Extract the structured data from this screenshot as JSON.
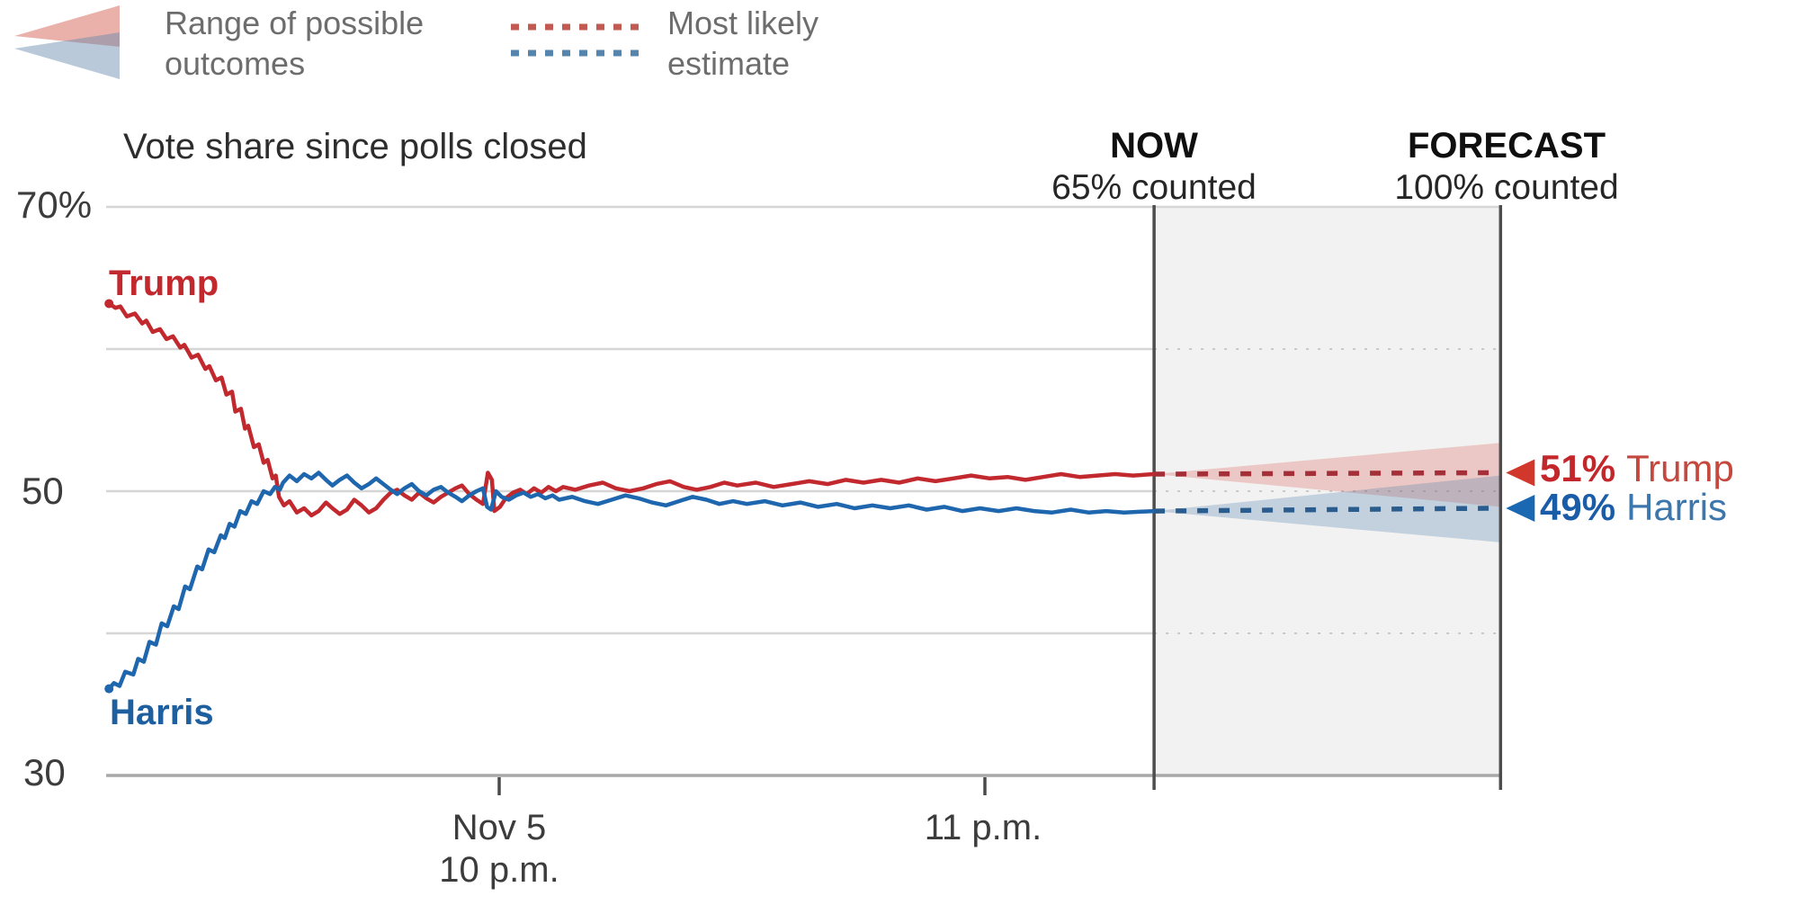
{
  "legend": {
    "range_label": "Range of possible\noutcomes",
    "estimate_label": "Most likely\nestimate"
  },
  "chart": {
    "title": "Vote share since polls closed"
  },
  "columns": {
    "now": {
      "title": "NOW",
      "subtitle": "65% counted"
    },
    "forecast": {
      "title": "FORECAST",
      "subtitle": "100% counted"
    }
  },
  "series_labels": {
    "trump": "Trump",
    "harris": "Harris"
  },
  "results": {
    "trump": {
      "pct": "51%",
      "name": "Trump"
    },
    "harris": {
      "pct": "49%",
      "name": "Harris"
    }
  },
  "colors": {
    "trump_line": "#c2292e",
    "harris_line": "#1e66ae",
    "trump_label": "#c2292e",
    "harris_label": "#1e5fa0",
    "trump_dash": "#a52f38",
    "harris_dash": "#2b5c8e",
    "trump_arrow": "#d1372a",
    "harris_arrow": "#1a68b2",
    "trump_fan": "rgba(217,83,71,0.26)",
    "harris_fan": "rgba(86,128,173,0.30)",
    "legend_fan_red": "rgba(214,100,88,0.50)",
    "legend_fan_blue": "rgba(100,135,172,0.45)",
    "legend_dash_red": "#c05a52",
    "legend_dash_blue": "#5585ad",
    "end_pct_trump": "#c3272c",
    "end_name_trump": "#c5483e",
    "end_pct_harris": "#1a5ca8",
    "end_name_harris": "#3b76ac",
    "grid": "#d6d6d6",
    "grid_dotted": "#c9c9c9",
    "baseline": "#a8a8a8",
    "border": "#4d4d4d",
    "axis_tick": "#4a4a4a",
    "region_bg": "#f2f2f2"
  },
  "chart_data": {
    "type": "line",
    "title": "Vote share since polls closed",
    "x_unit": "minutes relative to Nov 5, 10 p.m.",
    "y_unit": "percent of counted vote",
    "ylim": [
      30,
      70
    ],
    "y_ticks": [
      {
        "v": 70,
        "label": "70%"
      },
      {
        "v": 50,
        "label": "50"
      },
      {
        "v": 30,
        "label": "30"
      }
    ],
    "y_grid_unlabeled": [
      60,
      40
    ],
    "x_ticks": [
      {
        "t": 0,
        "label": "Nov 5\n10 p.m."
      },
      {
        "t": 60,
        "label": "11 p.m."
      }
    ],
    "now": {
      "t": 80.9,
      "counted": "65%"
    },
    "forecast_end": {
      "t": 123.7,
      "counted": "100%"
    },
    "series": [
      {
        "name": "Trump",
        "key": "trump",
        "final": "51%",
        "estimate": {
          "start": 51.2,
          "end": 51.3
        },
        "range_at_end": [
          48.9,
          53.4
        ],
        "points": [
          [
            -48.2,
            63.2
          ],
          [
            -47.4,
            62.9
          ],
          [
            -46.8,
            63.0
          ],
          [
            -46.0,
            62.3
          ],
          [
            -45.0,
            62.5
          ],
          [
            -44.1,
            61.8
          ],
          [
            -43.6,
            62.0
          ],
          [
            -42.8,
            61.2
          ],
          [
            -41.9,
            61.4
          ],
          [
            -41.1,
            60.7
          ],
          [
            -40.3,
            60.9
          ],
          [
            -39.4,
            60.1
          ],
          [
            -38.9,
            60.3
          ],
          [
            -38.0,
            59.4
          ],
          [
            -37.2,
            59.6
          ],
          [
            -36.3,
            58.6
          ],
          [
            -35.8,
            58.8
          ],
          [
            -35.0,
            57.8
          ],
          [
            -34.3,
            58.0
          ],
          [
            -33.7,
            56.8
          ],
          [
            -33.0,
            57.0
          ],
          [
            -32.6,
            55.6
          ],
          [
            -31.9,
            55.8
          ],
          [
            -31.4,
            54.4
          ],
          [
            -31.0,
            54.6
          ],
          [
            -30.3,
            53.1
          ],
          [
            -29.7,
            53.3
          ],
          [
            -29.1,
            52.0
          ],
          [
            -28.6,
            52.2
          ],
          [
            -28.0,
            50.9
          ],
          [
            -27.6,
            51.1
          ],
          [
            -27.2,
            49.6
          ],
          [
            -26.6,
            49.0
          ],
          [
            -25.9,
            49.3
          ],
          [
            -25.0,
            48.5
          ],
          [
            -24.1,
            48.8
          ],
          [
            -23.2,
            48.3
          ],
          [
            -22.3,
            48.6
          ],
          [
            -21.4,
            49.2
          ],
          [
            -20.6,
            48.8
          ],
          [
            -19.7,
            48.4
          ],
          [
            -18.8,
            48.7
          ],
          [
            -17.9,
            49.4
          ],
          [
            -17.0,
            49.0
          ],
          [
            -16.1,
            48.5
          ],
          [
            -15.2,
            48.8
          ],
          [
            -14.3,
            49.4
          ],
          [
            -13.4,
            49.9
          ],
          [
            -12.6,
            50.1
          ],
          [
            -11.7,
            49.7
          ],
          [
            -10.8,
            49.4
          ],
          [
            -9.9,
            49.9
          ],
          [
            -9.0,
            49.5
          ],
          [
            -8.1,
            49.2
          ],
          [
            -7.2,
            49.6
          ],
          [
            -6.3,
            49.9
          ],
          [
            -5.4,
            50.2
          ],
          [
            -4.6,
            50.4
          ],
          [
            -3.7,
            49.8
          ],
          [
            -2.8,
            49.4
          ],
          [
            -2.0,
            49.1
          ],
          [
            -1.4,
            51.3
          ],
          [
            -0.9,
            50.8
          ],
          [
            -0.6,
            48.6
          ],
          [
            0.1,
            48.9
          ],
          [
            0.8,
            49.5
          ],
          [
            1.7,
            49.9
          ],
          [
            2.6,
            50.1
          ],
          [
            3.4,
            49.8
          ],
          [
            4.3,
            50.2
          ],
          [
            5.2,
            49.9
          ],
          [
            6.1,
            50.3
          ],
          [
            7.0,
            50.0
          ],
          [
            7.9,
            50.3
          ],
          [
            9.4,
            50.1
          ],
          [
            11.1,
            50.4
          ],
          [
            12.8,
            50.6
          ],
          [
            14.4,
            50.2
          ],
          [
            16.1,
            50.0
          ],
          [
            17.8,
            50.2
          ],
          [
            19.4,
            50.5
          ],
          [
            21.1,
            50.7
          ],
          [
            22.8,
            50.3
          ],
          [
            24.4,
            50.1
          ],
          [
            26.1,
            50.3
          ],
          [
            27.8,
            50.6
          ],
          [
            29.4,
            50.4
          ],
          [
            31.7,
            50.6
          ],
          [
            33.9,
            50.3
          ],
          [
            36.1,
            50.5
          ],
          [
            38.3,
            50.7
          ],
          [
            40.6,
            50.5
          ],
          [
            42.8,
            50.8
          ],
          [
            45.0,
            50.6
          ],
          [
            47.2,
            50.8
          ],
          [
            49.4,
            50.6
          ],
          [
            51.7,
            50.9
          ],
          [
            53.9,
            50.7
          ],
          [
            56.1,
            50.9
          ],
          [
            58.3,
            51.1
          ],
          [
            60.6,
            50.9
          ],
          [
            62.8,
            51.0
          ],
          [
            65.0,
            50.8
          ],
          [
            67.2,
            51.0
          ],
          [
            69.4,
            51.2
          ],
          [
            71.7,
            51.0
          ],
          [
            73.9,
            51.1
          ],
          [
            76.1,
            51.2
          ],
          [
            78.3,
            51.1
          ],
          [
            80.9,
            51.2
          ]
        ]
      },
      {
        "name": "Harris",
        "key": "harris",
        "final": "49%",
        "estimate": {
          "start": 48.6,
          "end": 48.8
        },
        "range_at_end": [
          46.4,
          51.1
        ],
        "points": [
          [
            -48.2,
            36.1
          ],
          [
            -47.6,
            36.5
          ],
          [
            -46.9,
            36.3
          ],
          [
            -46.2,
            37.3
          ],
          [
            -45.2,
            37.1
          ],
          [
            -44.6,
            38.2
          ],
          [
            -43.9,
            38.0
          ],
          [
            -43.2,
            39.4
          ],
          [
            -42.4,
            39.2
          ],
          [
            -41.7,
            40.7
          ],
          [
            -41.0,
            40.5
          ],
          [
            -40.2,
            41.9
          ],
          [
            -39.6,
            41.7
          ],
          [
            -38.8,
            43.3
          ],
          [
            -38.2,
            43.1
          ],
          [
            -37.3,
            44.7
          ],
          [
            -36.7,
            44.5
          ],
          [
            -35.9,
            45.9
          ],
          [
            -35.2,
            45.7
          ],
          [
            -34.4,
            46.9
          ],
          [
            -33.9,
            46.7
          ],
          [
            -33.3,
            47.7
          ],
          [
            -32.7,
            47.5
          ],
          [
            -32.0,
            48.6
          ],
          [
            -31.3,
            48.4
          ],
          [
            -30.6,
            49.3
          ],
          [
            -29.9,
            49.1
          ],
          [
            -29.1,
            50.0
          ],
          [
            -28.3,
            49.8
          ],
          [
            -27.7,
            50.3
          ],
          [
            -27.1,
            50.1
          ],
          [
            -26.7,
            50.6
          ],
          [
            -25.9,
            51.1
          ],
          [
            -25.0,
            50.7
          ],
          [
            -24.1,
            51.2
          ],
          [
            -23.2,
            50.9
          ],
          [
            -22.3,
            51.3
          ],
          [
            -21.4,
            50.8
          ],
          [
            -20.6,
            50.4
          ],
          [
            -19.7,
            50.8
          ],
          [
            -18.8,
            51.1
          ],
          [
            -17.9,
            50.6
          ],
          [
            -17.0,
            50.2
          ],
          [
            -16.1,
            50.5
          ],
          [
            -15.2,
            50.9
          ],
          [
            -14.3,
            50.5
          ],
          [
            -13.4,
            50.1
          ],
          [
            -12.6,
            49.8
          ],
          [
            -11.7,
            50.2
          ],
          [
            -10.8,
            50.5
          ],
          [
            -9.9,
            50.0
          ],
          [
            -9.0,
            49.7
          ],
          [
            -8.1,
            50.1
          ],
          [
            -7.2,
            50.3
          ],
          [
            -6.3,
            49.9
          ],
          [
            -5.4,
            49.6
          ],
          [
            -4.6,
            49.3
          ],
          [
            -3.7,
            49.7
          ],
          [
            -2.8,
            50.0
          ],
          [
            -2.0,
            50.2
          ],
          [
            -1.5,
            48.9
          ],
          [
            -1.0,
            48.7
          ],
          [
            -0.4,
            50.0
          ],
          [
            0.3,
            49.6
          ],
          [
            1.2,
            49.4
          ],
          [
            2.1,
            49.7
          ],
          [
            3.0,
            49.9
          ],
          [
            3.9,
            49.6
          ],
          [
            4.8,
            49.8
          ],
          [
            5.7,
            49.5
          ],
          [
            6.6,
            49.7
          ],
          [
            7.4,
            49.4
          ],
          [
            9.0,
            49.6
          ],
          [
            10.6,
            49.3
          ],
          [
            12.2,
            49.1
          ],
          [
            13.9,
            49.4
          ],
          [
            15.6,
            49.7
          ],
          [
            17.2,
            49.5
          ],
          [
            18.9,
            49.2
          ],
          [
            20.6,
            49.0
          ],
          [
            22.2,
            49.3
          ],
          [
            23.9,
            49.6
          ],
          [
            25.6,
            49.4
          ],
          [
            27.2,
            49.1
          ],
          [
            28.9,
            49.3
          ],
          [
            30.6,
            49.1
          ],
          [
            32.8,
            49.3
          ],
          [
            35.0,
            49.0
          ],
          [
            37.2,
            49.2
          ],
          [
            39.4,
            48.9
          ],
          [
            41.7,
            49.1
          ],
          [
            43.9,
            48.8
          ],
          [
            46.1,
            49.0
          ],
          [
            48.3,
            48.8
          ],
          [
            50.6,
            49.0
          ],
          [
            52.8,
            48.7
          ],
          [
            55.0,
            48.9
          ],
          [
            57.2,
            48.6
          ],
          [
            59.4,
            48.8
          ],
          [
            61.7,
            48.6
          ],
          [
            63.9,
            48.8
          ],
          [
            66.1,
            48.6
          ],
          [
            68.3,
            48.5
          ],
          [
            70.6,
            48.7
          ],
          [
            72.8,
            48.5
          ],
          [
            75.0,
            48.6
          ],
          [
            77.2,
            48.5
          ],
          [
            80.9,
            48.6
          ]
        ]
      }
    ],
    "legend_position": "top-left",
    "grid": true
  }
}
